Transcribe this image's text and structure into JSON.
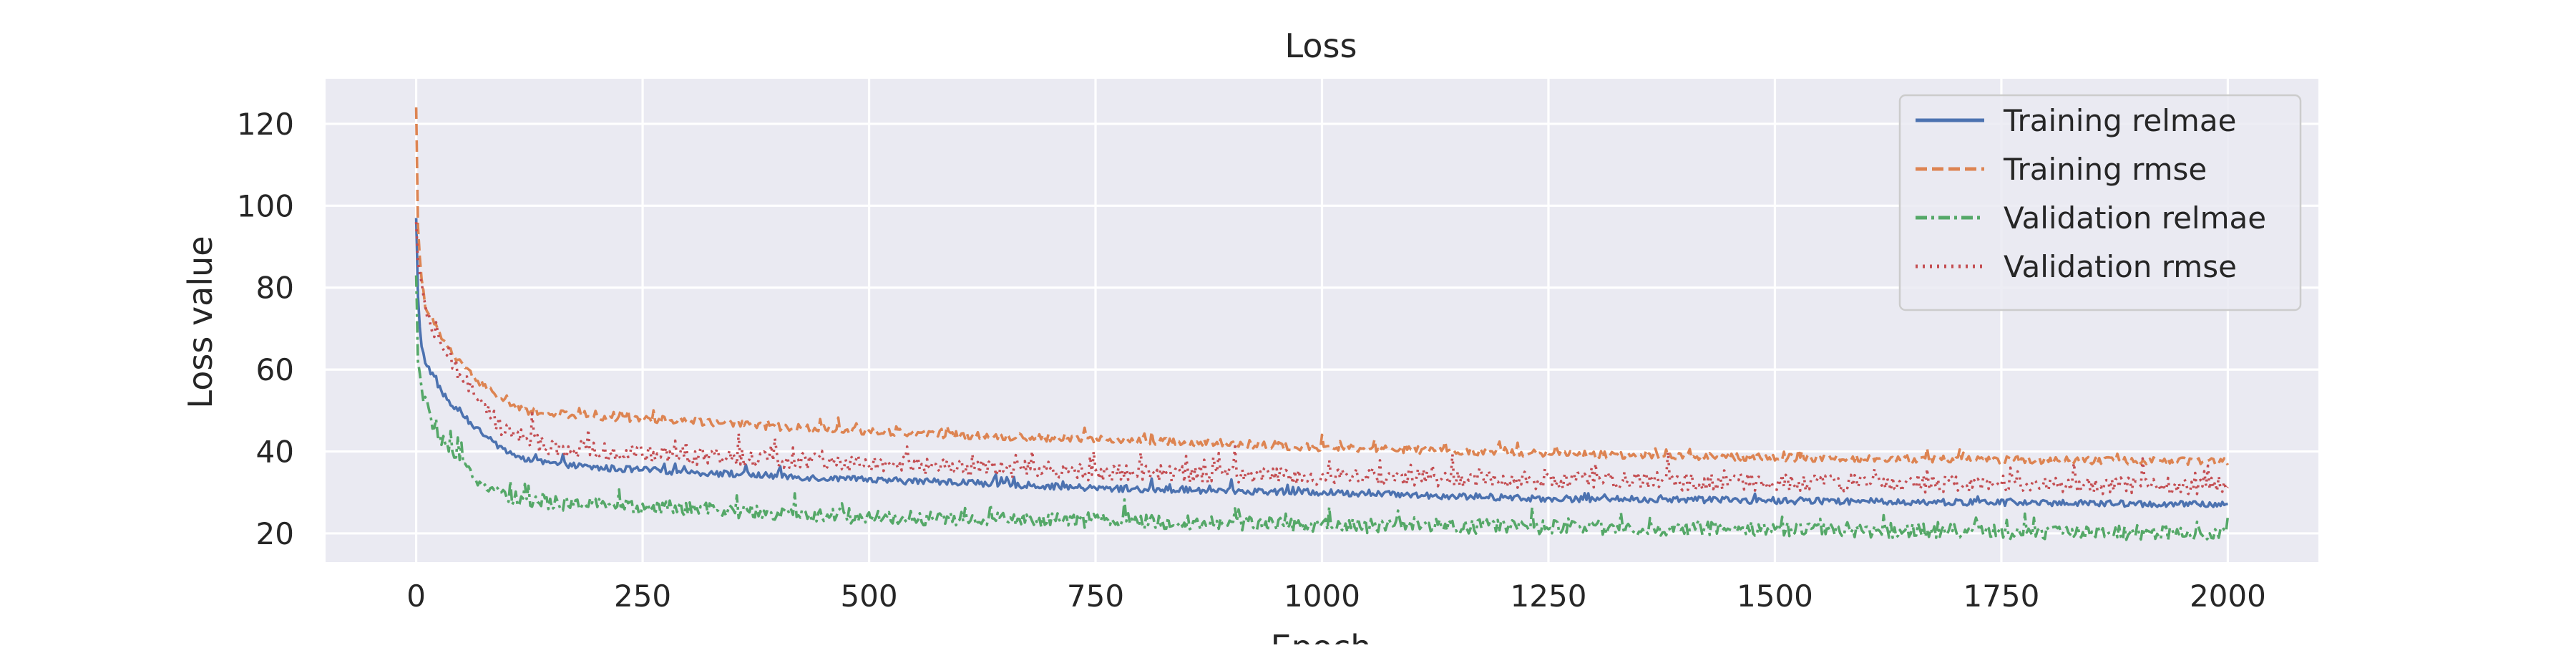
{
  "chart_data": {
    "type": "line",
    "title": "Loss",
    "xlabel": "Epoch",
    "ylabel": "Loss value",
    "xlim": [
      -100,
      2100
    ],
    "ylim": [
      13,
      131
    ],
    "xticks": [
      0,
      250,
      500,
      750,
      1000,
      1250,
      1500,
      1750,
      2000
    ],
    "xtick_labels": [
      "0",
      "250",
      "500",
      "750",
      "1000",
      "1250",
      "1500",
      "1750",
      "2000"
    ],
    "yticks": [
      20,
      40,
      60,
      80,
      100,
      120
    ],
    "ytick_labels": [
      "20",
      "40",
      "60",
      "80",
      "100",
      "120"
    ],
    "grid": true,
    "legend_position": "top-right",
    "background_color": "#eaeaf2",
    "grid_color": "#ffffff",
    "series": [
      {
        "name": "Training relmae",
        "color": "#4c72b0",
        "linestyle": "solid",
        "x": [
          0,
          2,
          5,
          10,
          20,
          30,
          40,
          50,
          60,
          80,
          100,
          120,
          150,
          200,
          250,
          300,
          400,
          500,
          600,
          750,
          1000,
          1250,
          1500,
          1750,
          2000
        ],
        "y": [
          97,
          78,
          66,
          62,
          58,
          54,
          51,
          49,
          47,
          43,
          40,
          38,
          37,
          36,
          35.5,
          35,
          34,
          33,
          32.5,
          31,
          30,
          28.5,
          28,
          27.5,
          27
        ],
        "noise": 0.8
      },
      {
        "name": "Training rmse",
        "color": "#dd8452",
        "linestyle": "dashed",
        "x": [
          0,
          2,
          5,
          10,
          20,
          30,
          40,
          50,
          60,
          80,
          100,
          120,
          150,
          200,
          250,
          300,
          400,
          500,
          600,
          750,
          1000,
          1250,
          1500,
          1750,
          2000
        ],
        "y": [
          124,
          95,
          83,
          76,
          71,
          67,
          64,
          61,
          59,
          55,
          52,
          50,
          49,
          48.5,
          48,
          47.5,
          46,
          45,
          44,
          43,
          41,
          39.5,
          38.5,
          38,
          37.5
        ],
        "noise": 0.9
      },
      {
        "name": "Validation relmae",
        "color": "#55a868",
        "linestyle": "dashdot",
        "x": [
          0,
          2,
          5,
          10,
          20,
          30,
          40,
          50,
          60,
          80,
          100,
          120,
          150,
          200,
          250,
          300,
          400,
          500,
          600,
          750,
          1000,
          1250,
          1500,
          1750,
          2000
        ],
        "y": [
          83,
          62,
          56,
          52,
          46,
          42,
          39,
          37,
          35,
          31,
          29,
          28,
          27.5,
          27,
          26.5,
          26,
          25,
          24,
          23.5,
          23,
          22,
          21.5,
          21,
          20.5,
          20
        ],
        "noise": 1.8
      },
      {
        "name": "Validation rmse",
        "color": "#c44e52",
        "linestyle": "dotted",
        "x": [
          0,
          2,
          5,
          10,
          20,
          30,
          40,
          50,
          60,
          80,
          100,
          120,
          150,
          200,
          250,
          300,
          400,
          500,
          600,
          750,
          1000,
          1250,
          1500,
          1750,
          2000
        ],
        "y": [
          96,
          86,
          80,
          75,
          69,
          65,
          62,
          58,
          55,
          49,
          45,
          43,
          41,
          40,
          39.5,
          39,
          38,
          37,
          36,
          35,
          34,
          33,
          32.5,
          32,
          31.5
        ],
        "noise": 2.2
      }
    ]
  }
}
